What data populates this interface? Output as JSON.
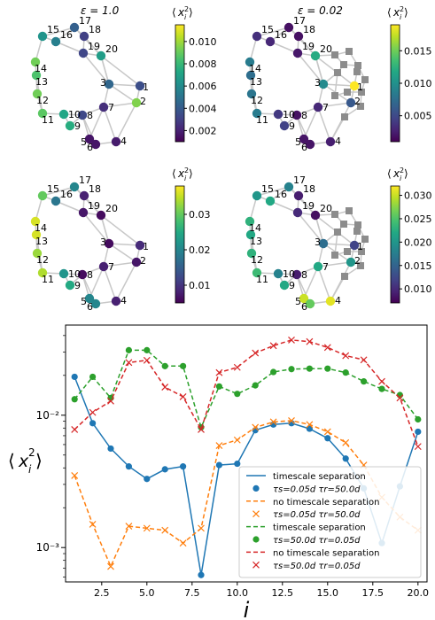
{
  "chart_data": [
    {
      "type": "network",
      "panel": "top-left",
      "title": "ε = 1.0",
      "colorbar_label": "⟨x_i²⟩",
      "colorbar_range": [
        0.001,
        0.0115
      ],
      "colorbar_ticks": [
        "0.010",
        "0.008",
        "0.006",
        "0.004",
        "0.002"
      ],
      "colorbar_tick_values": [
        0.01,
        0.008,
        0.006,
        0.004,
        0.002
      ],
      "node_labels": [
        "1",
        "2",
        "3",
        "4",
        "5",
        "6",
        "7",
        "8",
        "9",
        "10",
        "11",
        "12",
        "13",
        "14",
        "15",
        "16",
        "17",
        "18",
        "19",
        "20"
      ],
      "node_values": [
        0.0035,
        0.0095,
        0.0045,
        0.0018,
        0.0016,
        0.0016,
        0.0024,
        0.0033,
        0.0075,
        0.0072,
        0.0088,
        0.0092,
        0.0085,
        0.0092,
        0.0064,
        0.0055,
        0.0042,
        0.003,
        0.0032,
        0.0068
      ]
    },
    {
      "type": "network",
      "panel": "top-right",
      "title": "ε = 0.02",
      "colorbar_label": "⟨x_i²⟩",
      "colorbar_range": [
        0.001,
        0.019
      ],
      "colorbar_ticks": [
        "0.015",
        "0.010",
        "0.005"
      ],
      "colorbar_tick_values": [
        0.015,
        0.01,
        0.005
      ],
      "node_labels": [
        "1",
        "2",
        "3",
        "4",
        "5",
        "6",
        "7",
        "8",
        "9",
        "10",
        "11",
        "12",
        "13",
        "14",
        "15",
        "16",
        "17",
        "18",
        "19",
        "20"
      ],
      "node_values": [
        0.019,
        0.006,
        0.0095,
        0.0025,
        0.002,
        0.002,
        0.003,
        0.0018,
        0.0045,
        0.004,
        0.0085,
        0.008,
        0.0075,
        0.0085,
        0.0035,
        0.003,
        0.0018,
        0.0018,
        0.0022,
        0.012
      ]
    },
    {
      "type": "network",
      "panel": "bottom-left",
      "title": "",
      "colorbar_label": "⟨x_i²⟩",
      "colorbar_range": [
        0.005,
        0.038
      ],
      "colorbar_ticks": [
        "0.03",
        "0.02",
        "0.01"
      ],
      "colorbar_tick_values": [
        0.03,
        0.02,
        0.01
      ],
      "node_labels": [
        "1",
        "2",
        "3",
        "4",
        "5",
        "6",
        "7",
        "8",
        "9",
        "10",
        "11",
        "12",
        "13",
        "14",
        "15",
        "16",
        "17",
        "18",
        "19",
        "20"
      ],
      "node_values": [
        0.009,
        0.007,
        0.006,
        0.008,
        0.02,
        0.02,
        0.008,
        0.006,
        0.025,
        0.022,
        0.034,
        0.033,
        0.036,
        0.036,
        0.03,
        0.018,
        0.02,
        0.008,
        0.007,
        0.006
      ]
    },
    {
      "type": "network",
      "panel": "bottom-right",
      "title": "",
      "colorbar_label": "⟨x_i²⟩",
      "colorbar_range": [
        0.007,
        0.032
      ],
      "colorbar_ticks": [
        "0.030",
        "0.025",
        "0.020",
        "0.015",
        "0.010"
      ],
      "colorbar_tick_values": [
        0.03,
        0.025,
        0.02,
        0.015,
        0.01
      ],
      "node_labels": [
        "1",
        "2",
        "3",
        "4",
        "5",
        "6",
        "7",
        "8",
        "9",
        "10",
        "11",
        "12",
        "13",
        "14",
        "15",
        "16",
        "17",
        "18",
        "19",
        "20"
      ],
      "node_values": [
        0.012,
        0.02,
        0.016,
        0.031,
        0.03,
        0.026,
        0.022,
        0.009,
        0.022,
        0.018,
        0.024,
        0.023,
        0.022,
        0.023,
        0.02,
        0.022,
        0.018,
        0.009,
        0.01,
        0.008
      ]
    },
    {
      "type": "line",
      "panel": "bottom",
      "xlabel": "i",
      "ylabel": "⟨x_i²⟩",
      "yscale": "log",
      "xlim": [
        0.5,
        20.5
      ],
      "ylim": [
        0.00055,
        0.048
      ],
      "xticks": [
        "2.5",
        "5.0",
        "7.5",
        "10.0",
        "12.5",
        "15.0",
        "17.5",
        "20.0"
      ],
      "xtick_values": [
        2.5,
        5.0,
        7.5,
        10.0,
        12.5,
        15.0,
        17.5,
        20.0
      ],
      "yticks": [
        "10⁻²",
        "10⁻³"
      ],
      "ytick_values": [
        0.01,
        0.001
      ],
      "x": [
        1,
        2,
        3,
        4,
        5,
        6,
        7,
        8,
        9,
        10,
        11,
        12,
        13,
        14,
        15,
        16,
        17,
        18,
        19,
        20
      ],
      "series": [
        {
          "line_label": "timescale separation",
          "marker_label": "τs=0.05d    τr=50.0d",
          "color": "#1f77b4",
          "linestyle": "solid",
          "marker": "circle",
          "values": [
            0.0195,
            0.0087,
            0.0056,
            0.0041,
            0.0033,
            0.0039,
            0.0041,
            0.00062,
            0.0042,
            0.0043,
            0.0077,
            0.0085,
            0.0087,
            0.0079,
            0.0067,
            0.0047,
            0.0028,
            0.00108,
            0.0029,
            0.0075
          ]
        },
        {
          "line_label": "no timescale separation",
          "marker_label": "τs=0.05d    τr=50.0d",
          "color": "#ff7f0e",
          "linestyle": "dashed",
          "marker": "x",
          "values": [
            0.0035,
            0.0015,
            0.00072,
            0.00145,
            0.0014,
            0.00135,
            0.00108,
            0.0014,
            0.0059,
            0.0065,
            0.0081,
            0.0089,
            0.0091,
            0.0085,
            0.0075,
            0.0062,
            0.0042,
            0.0024,
            0.0017,
            0.00135
          ]
        },
        {
          "line_label": "timescale separation",
          "marker_label": "τs=50.0d    τr=0.05d",
          "color": "#2ca02c",
          "linestyle": "dashed",
          "marker": "circle",
          "values": [
            0.0132,
            0.0195,
            0.0135,
            0.031,
            0.031,
            0.0235,
            0.0235,
            0.0081,
            0.0165,
            0.0145,
            0.0168,
            0.0212,
            0.0223,
            0.0225,
            0.0225,
            0.021,
            0.018,
            0.0158,
            0.0142,
            0.0093
          ]
        },
        {
          "line_label": "no timescale separation",
          "marker_label": "τs=50.0d    τr=0.05d",
          "color": "#d62728",
          "linestyle": "dashed",
          "marker": "x",
          "values": [
            0.0078,
            0.0105,
            0.0128,
            0.025,
            0.026,
            0.0163,
            0.0138,
            0.0078,
            0.021,
            0.023,
            0.0295,
            0.0335,
            0.037,
            0.036,
            0.0325,
            0.0282,
            0.0262,
            0.018,
            0.0135,
            0.0058
          ]
        }
      ]
    }
  ]
}
